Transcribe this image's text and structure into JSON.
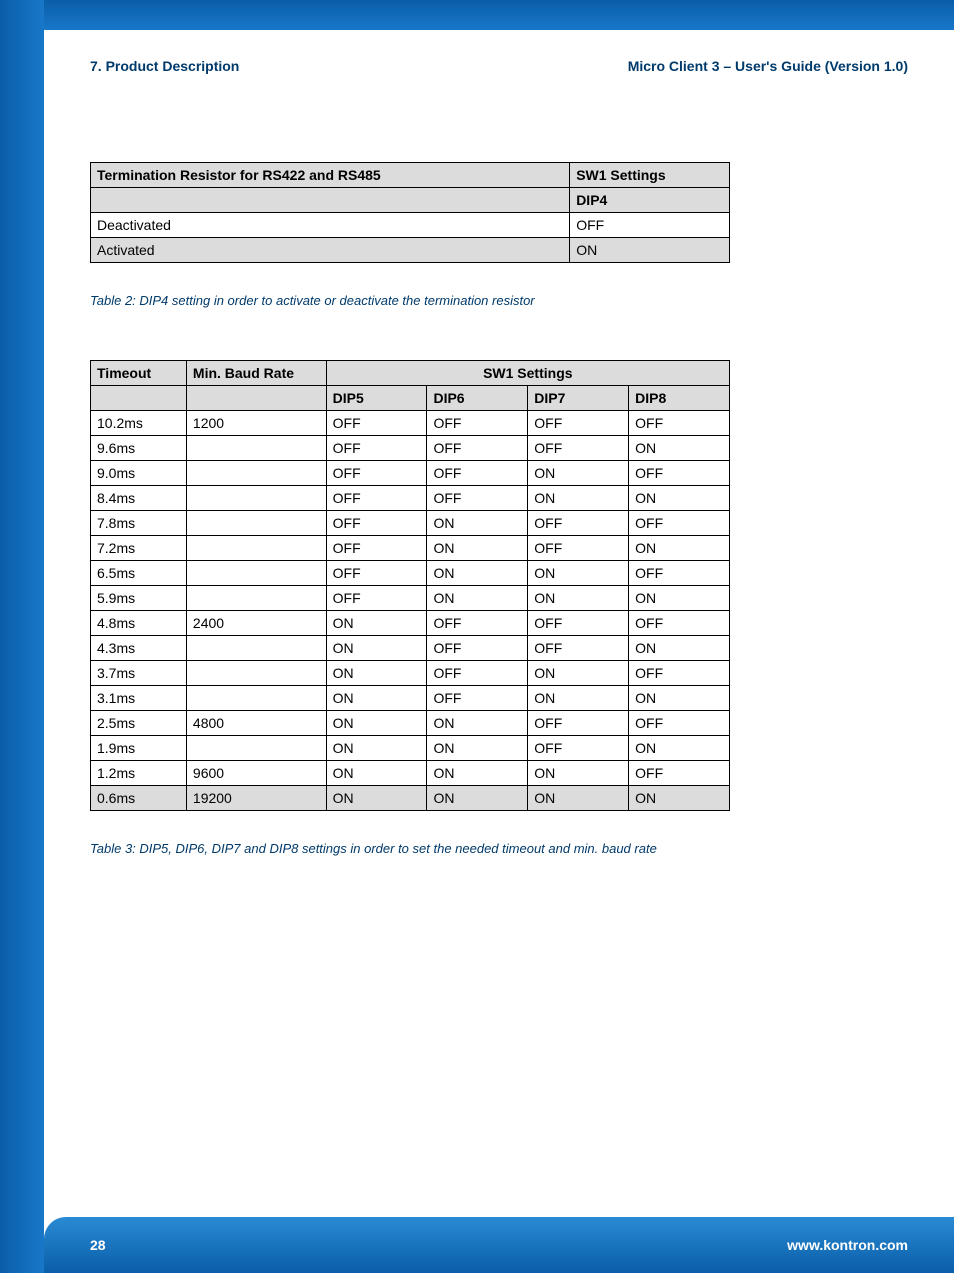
{
  "header": {
    "left": "7. Product Description",
    "right": "Micro Client 3 – User's Guide (Version 1.0)"
  },
  "table1": {
    "col1_header": "Termination Resistor for RS422 and RS485",
    "col2_header": "SW1 Settings",
    "sub_header": "DIP4",
    "rows": [
      {
        "label": "Deactivated",
        "val": "OFF",
        "shade": false
      },
      {
        "label": "Activated",
        "val": "ON",
        "shade": true
      }
    ],
    "caption": "Table 2: DIP4 setting in order to activate or deactivate the termination resistor"
  },
  "table2": {
    "h_timeout": "Timeout",
    "h_baud": "Min. Baud Rate",
    "h_sw1": "SW1 Settings",
    "h_dip5": "DIP5",
    "h_dip6": "DIP6",
    "h_dip7": "DIP7",
    "h_dip8": "DIP8",
    "rows": [
      {
        "t": "10.2ms",
        "b": "1200",
        "d5": "OFF",
        "d6": "OFF",
        "d7": "OFF",
        "d8": "OFF"
      },
      {
        "t": "9.6ms",
        "b": "",
        "d5": "OFF",
        "d6": "OFF",
        "d7": "OFF",
        "d8": "ON"
      },
      {
        "t": "9.0ms",
        "b": "",
        "d5": "OFF",
        "d6": "OFF",
        "d7": "ON",
        "d8": "OFF"
      },
      {
        "t": "8.4ms",
        "b": "",
        "d5": "OFF",
        "d6": "OFF",
        "d7": "ON",
        "d8": "ON"
      },
      {
        "t": "7.8ms",
        "b": "",
        "d5": "OFF",
        "d6": "ON",
        "d7": "OFF",
        "d8": "OFF"
      },
      {
        "t": "7.2ms",
        "b": "",
        "d5": "OFF",
        "d6": "ON",
        "d7": "OFF",
        "d8": "ON"
      },
      {
        "t": "6.5ms",
        "b": "",
        "d5": "OFF",
        "d6": "ON",
        "d7": "ON",
        "d8": "OFF"
      },
      {
        "t": "5.9ms",
        "b": "",
        "d5": "OFF",
        "d6": "ON",
        "d7": "ON",
        "d8": "ON"
      },
      {
        "t": "4.8ms",
        "b": "2400",
        "d5": "ON",
        "d6": "OFF",
        "d7": "OFF",
        "d8": "OFF"
      },
      {
        "t": "4.3ms",
        "b": "",
        "d5": "ON",
        "d6": "OFF",
        "d7": "OFF",
        "d8": "ON"
      },
      {
        "t": "3.7ms",
        "b": "",
        "d5": "ON",
        "d6": "OFF",
        "d7": "ON",
        "d8": "OFF"
      },
      {
        "t": "3.1ms",
        "b": "",
        "d5": "ON",
        "d6": "OFF",
        "d7": "ON",
        "d8": "ON"
      },
      {
        "t": "2.5ms",
        "b": "4800",
        "d5": "ON",
        "d6": "ON",
        "d7": "OFF",
        "d8": "OFF"
      },
      {
        "t": "1.9ms",
        "b": "",
        "d5": "ON",
        "d6": "ON",
        "d7": "OFF",
        "d8": "ON"
      },
      {
        "t": "1.2ms",
        "b": "9600",
        "d5": "ON",
        "d6": "ON",
        "d7": "ON",
        "d8": "OFF"
      },
      {
        "t": "0.6ms",
        "b": "19200",
        "d5": "ON",
        "d6": "ON",
        "d7": "ON",
        "d8": "ON",
        "shade": true
      }
    ],
    "caption": "Table 3: DIP5, DIP6, DIP7 and DIP8 settings in order to set the needed timeout and min. baud rate"
  },
  "footer": {
    "page": "28",
    "url": "www.kontron.com"
  },
  "colors": {
    "brand_text": "#003a6b",
    "header_bg": "#dcdcdc",
    "blue_grad_start": "#2a8ad4",
    "blue_grad_end": "#0a5ea8"
  }
}
